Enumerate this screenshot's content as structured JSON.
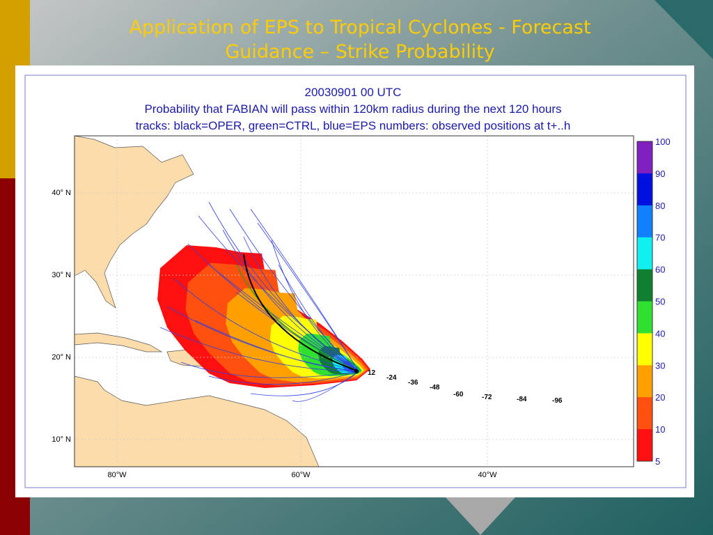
{
  "slide": {
    "title_lines": [
      "Application of EPS to Tropical Cyclones - Forecast",
      "Guidance – Strike Probability"
    ]
  },
  "map": {
    "header": [
      "20030901 00 UTC",
      "Probability that FABIAN will pass within 120km radius during the next 120 hours",
      "tracks: black=OPER, green=CTRL, blue=EPS numbers: observed positions at t+..h"
    ],
    "lat_labels": [
      "40° N",
      "30° N",
      "20° N",
      "10° N"
    ],
    "lon_labels": [
      "80°W",
      "60°W",
      "40°W"
    ],
    "colorbar_labels": [
      "100",
      "90",
      "80",
      "70",
      "60",
      "50",
      "40",
      "30",
      "20",
      "10",
      "5"
    ],
    "position_labels": [
      "12",
      "-24",
      "-36",
      "-48",
      "-60",
      "-72",
      "-84",
      "-96"
    ]
  }
}
